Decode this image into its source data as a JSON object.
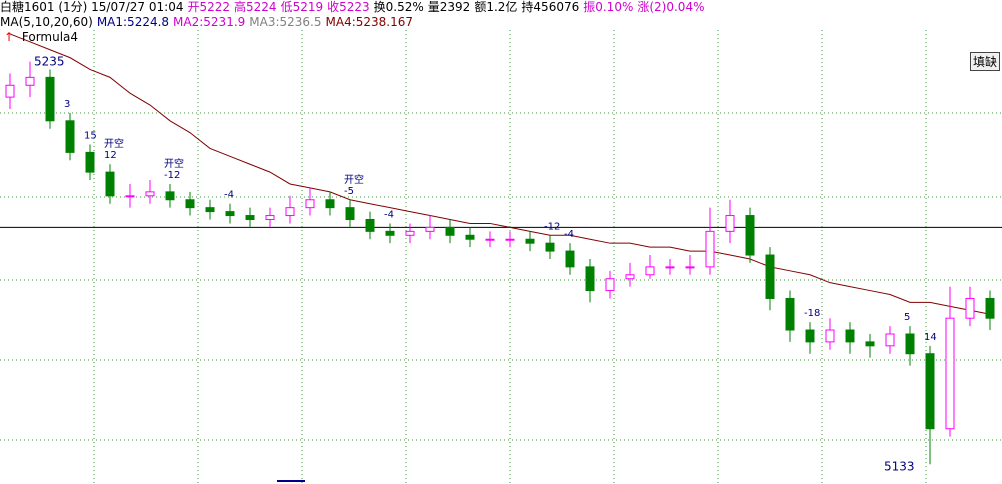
{
  "header": {
    "quote": [
      "白糖1601 (1分) 15/07/27 01:04",
      "开5222",
      "高5224",
      "低5219",
      "收5223",
      "换0.52%",
      "量2392",
      "额1.2亿",
      "持456076",
      "振0.10%",
      "涨(2)0.04%"
    ],
    "ma": [
      "MA(5,10,20,60)",
      "MA1:5224.8",
      "MA2:5231.9",
      "MA3:5236.5",
      "MA4:5238.167"
    ],
    "formula": "Formula4",
    "button": "填缺"
  },
  "chart_data": {
    "type": "candlestick",
    "ylim": [
      5128,
      5243
    ],
    "up_color": "#ff00ff",
    "down_color": "#008000",
    "open": [
      5226,
      5229,
      5231,
      5220,
      5212,
      5207,
      5201,
      5201,
      5202,
      5200,
      5198,
      5197,
      5196,
      5195,
      5196,
      5198,
      5200,
      5198,
      5195,
      5192,
      5191,
      5192,
      5193,
      5191,
      5190,
      5190,
      5190,
      5189,
      5187,
      5183,
      5177,
      5180,
      5181,
      5183,
      5183,
      5183,
      5192,
      5196,
      5186,
      5175,
      5167,
      5164,
      5167,
      5164,
      5163,
      5166,
      5161,
      5142,
      5170,
      5175
    ],
    "high": [
      5232,
      5235,
      5233,
      5222,
      5214,
      5209,
      5204,
      5205,
      5204,
      5202,
      5200,
      5199,
      5198,
      5198,
      5201,
      5203,
      5202,
      5200,
      5197,
      5194,
      5194,
      5196,
      5195,
      5193,
      5192,
      5192,
      5192,
      5191,
      5189,
      5185,
      5182,
      5184,
      5186,
      5185,
      5186,
      5198,
      5200,
      5198,
      5188,
      5177,
      5169,
      5170,
      5169,
      5166,
      5168,
      5168,
      5163,
      5178,
      5178,
      5177
    ],
    "low": [
      5223,
      5226,
      5218,
      5210,
      5205,
      5199,
      5198,
      5199,
      5198,
      5196,
      5195,
      5194,
      5193,
      5193,
      5194,
      5196,
      5196,
      5193,
      5190,
      5189,
      5189,
      5190,
      5189,
      5188,
      5188,
      5188,
      5187,
      5185,
      5181,
      5174,
      5175,
      5178,
      5180,
      5181,
      5181,
      5181,
      5189,
      5184,
      5172,
      5164,
      5161,
      5162,
      5161,
      5160,
      5161,
      5158,
      5133,
      5140,
      5168,
      5167
    ],
    "close": [
      5229,
      5231,
      5220,
      5212,
      5207,
      5201,
      5201,
      5202,
      5200,
      5198,
      5197,
      5196,
      5195,
      5196,
      5198,
      5200,
      5198,
      5195,
      5192,
      5191,
      5192,
      5193,
      5191,
      5190,
      5190,
      5190,
      5189,
      5187,
      5183,
      5177,
      5180,
      5181,
      5183,
      5183,
      5183,
      5192,
      5196,
      5186,
      5175,
      5167,
      5164,
      5167,
      5164,
      5163,
      5166,
      5161,
      5142,
      5170,
      5175,
      5170
    ],
    "series": [
      {
        "name": "MA4",
        "color": "#800000",
        "values": [
          5242,
          5240,
          5238,
          5236,
          5233,
          5231,
          5227,
          5224,
          5220,
          5217,
          5213,
          5211,
          5209,
          5207,
          5204,
          5203,
          5202,
          5200,
          5199,
          5198,
          5197,
          5196,
          5195,
          5194,
          5194,
          5193,
          5192,
          5191,
          5191,
          5190,
          5189,
          5189,
          5188,
          5188,
          5187,
          5187,
          5186,
          5185,
          5183,
          5182,
          5181,
          5179,
          5178,
          5177,
          5176,
          5174,
          5174,
          5173,
          5172,
          5171
        ]
      }
    ],
    "hline": 5193,
    "high_label": 5235,
    "low_label": 5133,
    "annotations": [
      {
        "index": 3,
        "text": "3"
      },
      {
        "index": 4,
        "text": "15"
      },
      {
        "index": 5,
        "text": "12"
      },
      {
        "index": 8,
        "text": "-12"
      },
      {
        "index": 11,
        "text": "-4"
      },
      {
        "index": 17,
        "text": "-5"
      },
      {
        "index": 19,
        "text": "-4"
      },
      {
        "index": 27,
        "text": "-12"
      },
      {
        "index": 28,
        "text": "-4"
      },
      {
        "index": 40,
        "text": "-18"
      },
      {
        "index": 45,
        "text": "5"
      },
      {
        "index": 46,
        "text": "14"
      },
      {
        "index": 5,
        "text": "开空"
      },
      {
        "index": 8,
        "text": "开空"
      },
      {
        "index": 17,
        "text": "开空"
      }
    ]
  }
}
